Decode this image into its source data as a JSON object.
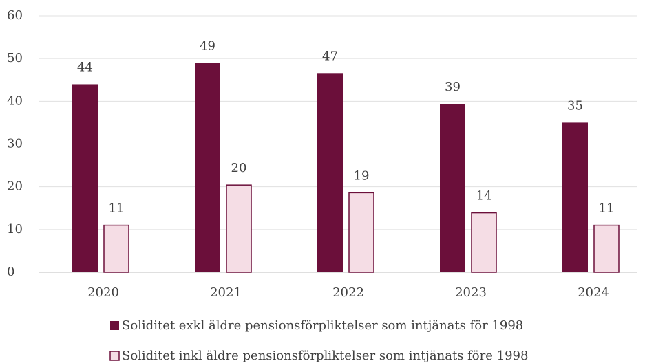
{
  "chart_data": {
    "type": "bar",
    "categories": [
      "2020",
      "2021",
      "2022",
      "2023",
      "2024"
    ],
    "series": [
      {
        "name": "Soliditet exkl äldre pensionsförpliktelser som intjänats för 1998",
        "color": "#6b0f3a",
        "values": [
          44,
          49,
          46.6,
          39.4,
          35
        ],
        "value_labels": [
          "44",
          "49",
          "47",
          "39",
          "35"
        ]
      },
      {
        "name": "Soliditet inkl äldre pensionsförpliktelser som intjänats före 1998",
        "color": "#f5dde5",
        "values": [
          11,
          20.4,
          18.6,
          13.9,
          11
        ],
        "value_labels": [
          "11",
          "20",
          "19",
          "14",
          "11"
        ]
      }
    ],
    "ylim": [
      0,
      60
    ],
    "yticks": [
      0,
      10,
      20,
      30,
      40,
      50,
      60
    ],
    "grid": true,
    "legend": "bottom"
  }
}
